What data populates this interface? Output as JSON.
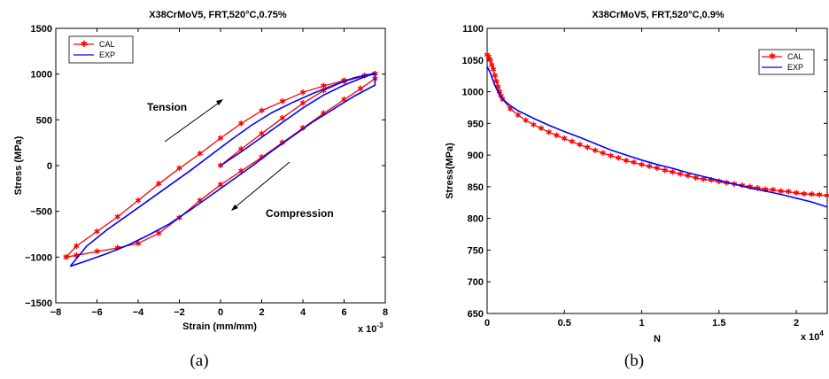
{
  "chart_data": [
    {
      "type": "line",
      "title": "X38CrMoV5, FRT,520°C,0.75%",
      "xlabel": "Strain (mm/mm)",
      "ylabel": "Stress (MPa)",
      "x_multiplier_label": "x 10",
      "x_multiplier_exp": "-3",
      "xlim": [
        -8,
        8
      ],
      "ylim": [
        -1500,
        1500
      ],
      "xticks": [
        -8,
        -6,
        -4,
        -2,
        0,
        2,
        4,
        6,
        8
      ],
      "yticks": [
        -1500,
        -1000,
        -500,
        0,
        500,
        1000,
        1500
      ],
      "legend": {
        "position": "top-left",
        "entries": [
          "CAL",
          "EXP"
        ]
      },
      "annotations": [
        "Tension",
        "Compression"
      ],
      "caption": "(a)",
      "series": [
        {
          "name": "CAL",
          "color": "#ff0000",
          "marker": "asterisk",
          "segments": [
            [
              [
                0,
                0
              ],
              [
                1,
                180
              ],
              [
                2,
                350
              ],
              [
                3,
                520
              ],
              [
                4,
                680
              ],
              [
                5,
                820
              ],
              [
                6,
                920
              ],
              [
                7,
                980
              ],
              [
                7.5,
                1000
              ]
            ],
            [
              [
                7.5,
                1000
              ],
              [
                7.5,
                950
              ],
              [
                6.8,
                840
              ],
              [
                6,
                720
              ],
              [
                5,
                570
              ],
              [
                4,
                410
              ],
              [
                3,
                250
              ],
              [
                2,
                90
              ],
              [
                1,
                -60
              ],
              [
                0,
                -210
              ],
              [
                -1,
                -380
              ],
              [
                -2,
                -570
              ],
              [
                -3,
                -740
              ],
              [
                -4,
                -850
              ],
              [
                -5,
                -900
              ],
              [
                -6,
                -940
              ],
              [
                -7,
                -980
              ],
              [
                -7.5,
                -1000
              ]
            ],
            [
              [
                -7.5,
                -1000
              ],
              [
                -7,
                -880
              ],
              [
                -6,
                -720
              ],
              [
                -5,
                -560
              ],
              [
                -4,
                -380
              ],
              [
                -3,
                -200
              ],
              [
                -2,
                -30
              ],
              [
                -1,
                130
              ],
              [
                0,
                300
              ],
              [
                1,
                460
              ],
              [
                2,
                600
              ],
              [
                3,
                700
              ],
              [
                4,
                800
              ],
              [
                5,
                870
              ],
              [
                6,
                930
              ],
              [
                7,
                980
              ],
              [
                7.5,
                1000
              ]
            ]
          ]
        },
        {
          "name": "EXP",
          "color": "#0000ff",
          "marker": "none",
          "segments": [
            [
              [
                0,
                0
              ],
              [
                1,
                150
              ],
              [
                2,
                310
              ],
              [
                3,
                470
              ],
              [
                4,
                630
              ],
              [
                5,
                770
              ],
              [
                6,
                880
              ],
              [
                7,
                970
              ],
              [
                7.5,
                1010
              ]
            ],
            [
              [
                7.5,
                1010
              ],
              [
                7.5,
                880
              ],
              [
                6.5,
                760
              ],
              [
                5.5,
                620
              ],
              [
                4.5,
                480
              ],
              [
                3.5,
                320
              ],
              [
                2.5,
                160
              ],
              [
                1.5,
                -10
              ],
              [
                0.5,
                -170
              ],
              [
                -0.5,
                -330
              ],
              [
                -1.5,
                -490
              ],
              [
                -2.5,
                -640
              ],
              [
                -3.5,
                -760
              ],
              [
                -4.5,
                -870
              ],
              [
                -5.5,
                -960
              ],
              [
                -6.5,
                -1040
              ],
              [
                -7.3,
                -1100
              ]
            ],
            [
              [
                -7.3,
                -1100
              ],
              [
                -6.5,
                -880
              ],
              [
                -5.5,
                -700
              ],
              [
                -4.5,
                -540
              ],
              [
                -3.5,
                -380
              ],
              [
                -2.5,
                -220
              ],
              [
                -1.5,
                -60
              ],
              [
                -0.5,
                110
              ],
              [
                0.5,
                280
              ],
              [
                1.5,
                440
              ],
              [
                2.5,
                580
              ],
              [
                3.5,
                690
              ],
              [
                4.5,
                790
              ],
              [
                5.5,
                880
              ],
              [
                6.5,
                960
              ],
              [
                7.5,
                1010
              ]
            ]
          ]
        }
      ]
    },
    {
      "type": "line",
      "title": "X38CrMoV5, FRT,520°C,0.9%",
      "xlabel": "N",
      "ylabel": "Stress(MPa)",
      "x_multiplier_label": "x 10",
      "x_multiplier_exp": "4",
      "xlim": [
        0,
        2.2
      ],
      "ylim": [
        650,
        1100
      ],
      "xticks": [
        0,
        0.5,
        1,
        1.5,
        2
      ],
      "yticks": [
        650,
        700,
        750,
        800,
        850,
        900,
        950,
        1000,
        1050,
        1100
      ],
      "legend": {
        "position": "top-right",
        "entries": [
          "CAL",
          "EXP"
        ]
      },
      "caption": "(b)",
      "series": [
        {
          "name": "CAL",
          "color": "#ff0000",
          "marker": "asterisk",
          "points": [
            [
              0,
              1058
            ],
            [
              0.01,
              1055
            ],
            [
              0.02,
              1050
            ],
            [
              0.03,
              1042
            ],
            [
              0.04,
              1035
            ],
            [
              0.05,
              1025
            ],
            [
              0.06,
              1016
            ],
            [
              0.07,
              1008
            ],
            [
              0.08,
              1000
            ],
            [
              0.09,
              993
            ],
            [
              0.1,
              988
            ],
            [
              0.15,
              973
            ],
            [
              0.2,
              963
            ],
            [
              0.25,
              955
            ],
            [
              0.3,
              948
            ],
            [
              0.35,
              942
            ],
            [
              0.4,
              936
            ],
            [
              0.45,
              931
            ],
            [
              0.5,
              926
            ],
            [
              0.55,
              921
            ],
            [
              0.6,
              916
            ],
            [
              0.65,
              912
            ],
            [
              0.7,
              907
            ],
            [
              0.75,
              903
            ],
            [
              0.8,
              899
            ],
            [
              0.85,
              895
            ],
            [
              0.9,
              891
            ],
            [
              0.95,
              888
            ],
            [
              1.0,
              885
            ],
            [
              1.05,
              882
            ],
            [
              1.1,
              879
            ],
            [
              1.15,
              876
            ],
            [
              1.2,
              873
            ],
            [
              1.25,
              870
            ],
            [
              1.3,
              867
            ],
            [
              1.35,
              864
            ],
            [
              1.4,
              862
            ],
            [
              1.45,
              860
            ],
            [
              1.5,
              858
            ],
            [
              1.55,
              856
            ],
            [
              1.6,
              854
            ],
            [
              1.65,
              852
            ],
            [
              1.7,
              850
            ],
            [
              1.75,
              848
            ],
            [
              1.8,
              846
            ],
            [
              1.85,
              845
            ],
            [
              1.9,
              843
            ],
            [
              1.95,
              842
            ],
            [
              2.0,
              840
            ],
            [
              2.05,
              839
            ],
            [
              2.1,
              838
            ],
            [
              2.15,
              837
            ],
            [
              2.2,
              836
            ]
          ]
        },
        {
          "name": "EXP",
          "color": "#0000ff",
          "marker": "none",
          "points": [
            [
              0,
              1040
            ],
            [
              0.02,
              1030
            ],
            [
              0.05,
              1010
            ],
            [
              0.08,
              995
            ],
            [
              0.1,
              988
            ],
            [
              0.15,
              978
            ],
            [
              0.2,
              970
            ],
            [
              0.3,
              958
            ],
            [
              0.4,
              947
            ],
            [
              0.5,
              937
            ],
            [
              0.6,
              928
            ],
            [
              0.7,
              918
            ],
            [
              0.8,
              908
            ],
            [
              0.9,
              900
            ],
            [
              1.0,
              892
            ],
            [
              1.1,
              885
            ],
            [
              1.2,
              879
            ],
            [
              1.3,
              872
            ],
            [
              1.4,
              866
            ],
            [
              1.5,
              860
            ],
            [
              1.6,
              854
            ],
            [
              1.7,
              848
            ],
            [
              1.8,
              843
            ],
            [
              1.9,
              838
            ],
            [
              2.0,
              832
            ],
            [
              2.1,
              826
            ],
            [
              2.2,
              818
            ]
          ]
        }
      ]
    }
  ]
}
